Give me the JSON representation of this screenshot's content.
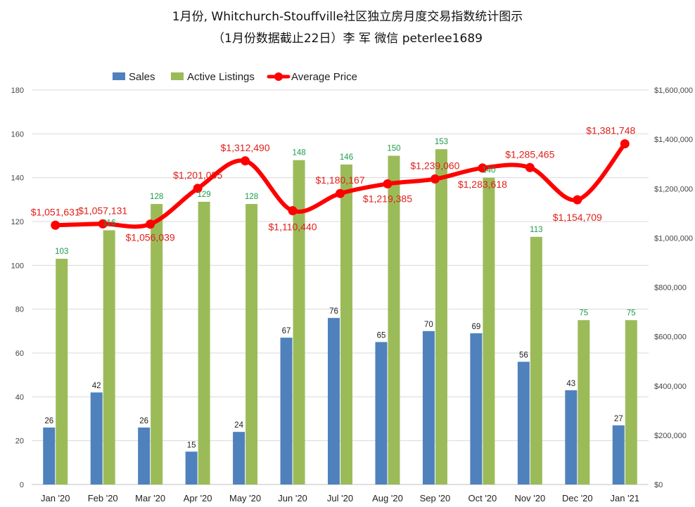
{
  "chart_data": {
    "type": "bar",
    "title": "1月份, Whitchurch-Stouffville社区独立房月度交易指数统计图示",
    "subtitle": "（1月份数据截止22日）李 军  微信  peterlee1689",
    "categories": [
      "Jan '20",
      "Feb '20",
      "Mar '20",
      "Apr '20",
      "May '20",
      "Jun '20",
      "Jul '20",
      "Aug '20",
      "Sep '20",
      "Oct '20",
      "Nov '20",
      "Dec '20",
      "Jan '21"
    ],
    "series": [
      {
        "name": "Sales",
        "type": "bar",
        "axis": "left",
        "color": "#4f81bd",
        "values": [
          26,
          42,
          26,
          15,
          24,
          67,
          76,
          65,
          70,
          69,
          56,
          43,
          27
        ]
      },
      {
        "name": "Active Listings",
        "type": "bar",
        "axis": "left",
        "color": "#9bbb59",
        "values": [
          103,
          116,
          128,
          129,
          128,
          148,
          146,
          150,
          153,
          140,
          113,
          75,
          75
        ]
      },
      {
        "name": "Average Price",
        "type": "line",
        "axis": "right",
        "color": "#ff0000",
        "values": [
          1051631,
          1057131,
          1056039,
          1201055,
          1312490,
          1110440,
          1180167,
          1219385,
          1239060,
          1283618,
          1285465,
          1154709,
          1381748
        ],
        "labels": [
          "$1,051,631",
          "$1,057,131",
          "$1,056,039",
          "$1,201,055",
          "$1,312,490",
          "$1,110,440",
          "$1,180,167",
          "$1,219,385",
          "$1,239,060",
          "$1,283,618",
          "$1,285,465",
          "$1,154,709",
          "$1,381,748"
        ]
      }
    ],
    "y_left": {
      "min": 0,
      "max": 180,
      "ticks": [
        "0",
        "20",
        "40",
        "60",
        "80",
        "100",
        "120",
        "140",
        "160",
        "180"
      ]
    },
    "y_right": {
      "min": 0,
      "max": 1600000,
      "ticks": [
        "$0",
        "$200,000",
        "$400,000",
        "$600,000",
        "$800,000",
        "$1,000,000",
        "$1,200,000",
        "$1,400,000",
        "$1,600,000"
      ]
    },
    "grid": true,
    "legend": "top"
  }
}
